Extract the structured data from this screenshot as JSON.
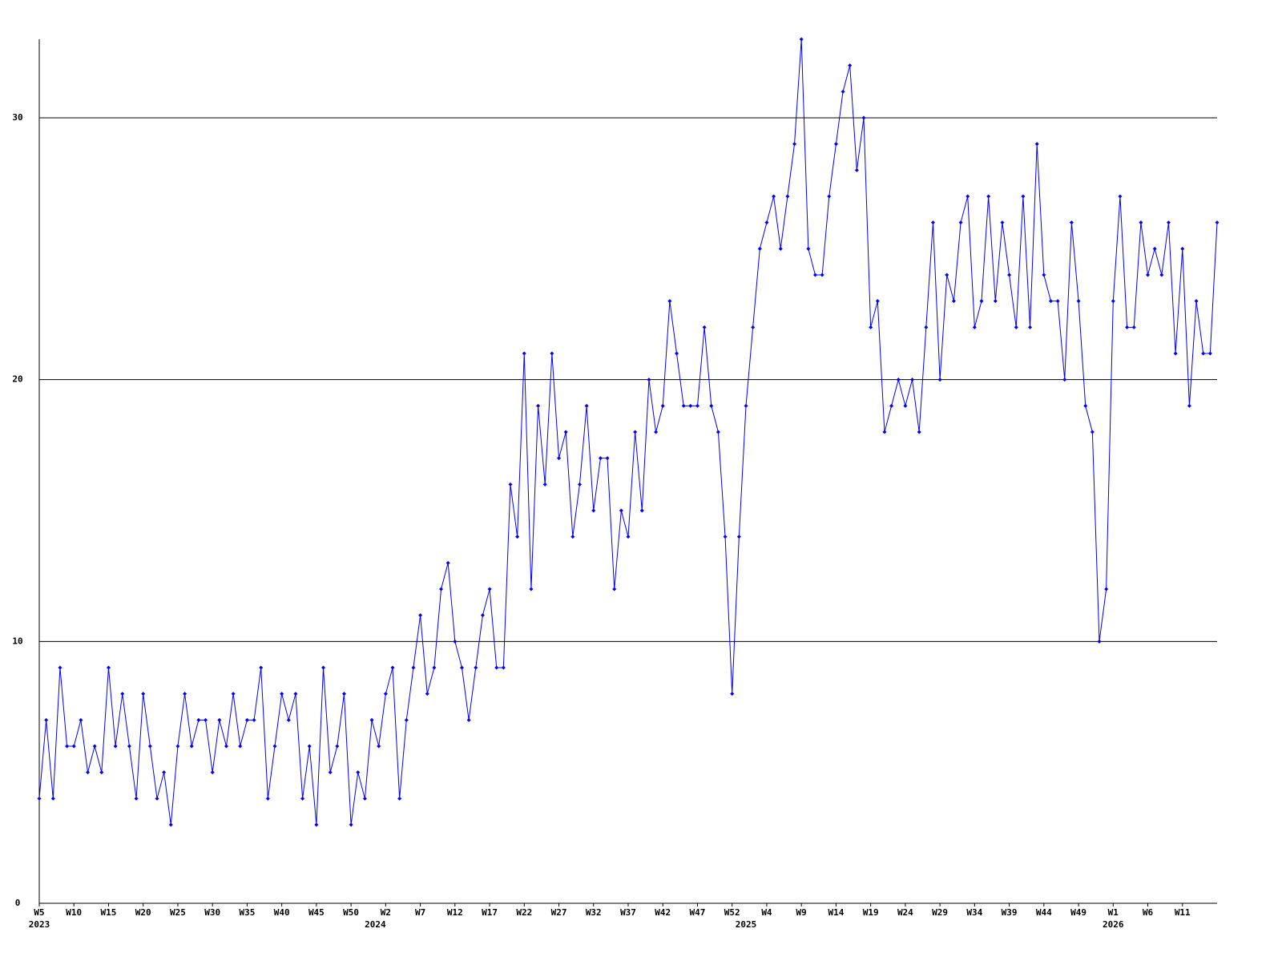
{
  "chart_data": {
    "type": "line",
    "x": [
      0,
      1,
      2,
      3,
      4,
      5,
      6,
      7,
      8,
      9,
      10,
      11,
      12,
      13,
      14,
      15,
      16,
      17,
      18,
      19,
      20,
      21,
      22,
      23,
      24,
      25,
      26,
      27,
      28,
      29,
      30,
      31,
      32,
      33,
      34,
      35,
      36,
      37,
      38,
      39,
      40,
      41,
      42,
      43,
      44,
      45,
      46,
      47,
      48,
      49,
      50,
      51,
      52,
      53,
      54,
      55,
      56,
      57,
      58,
      59,
      60,
      61,
      62,
      63,
      64,
      65,
      66,
      67,
      68,
      69,
      70,
      71,
      72,
      73,
      74,
      75,
      76,
      77,
      78,
      79,
      80,
      81,
      82,
      83,
      84,
      85,
      86,
      87,
      88,
      89,
      90,
      91,
      92,
      93,
      94,
      95,
      96,
      97,
      98,
      99,
      100,
      101,
      102,
      103,
      104,
      105,
      106,
      107,
      108,
      109,
      110,
      111,
      112,
      113,
      114,
      115,
      116,
      117,
      118,
      119,
      120,
      121,
      122,
      123,
      124,
      125,
      126,
      127,
      128,
      129,
      130,
      131,
      132,
      133,
      134,
      135,
      136,
      137,
      138,
      139,
      140,
      141,
      142,
      143,
      144,
      145,
      146,
      147,
      148,
      149,
      150,
      151,
      152,
      153,
      154,
      155,
      156,
      157,
      158,
      159,
      160,
      161,
      162,
      163,
      164,
      165,
      166,
      167,
      168,
      169,
      170
    ],
    "series": [
      {
        "color": "#0000ff",
        "values": [
          4,
          7,
          4,
          9,
          6,
          6,
          7,
          5,
          6,
          5,
          9,
          6,
          8,
          6,
          4,
          8,
          6,
          4,
          5,
          3,
          6,
          8,
          6,
          7,
          7,
          5,
          7,
          6,
          8,
          6,
          7,
          7,
          9,
          4,
          6,
          8,
          7,
          8,
          4,
          6,
          3,
          9,
          5,
          6,
          8,
          3,
          5,
          4,
          7,
          6,
          8,
          9,
          4,
          7,
          9,
          11,
          8,
          9,
          12,
          13,
          10,
          9,
          7,
          9,
          11,
          12,
          9,
          9,
          16,
          14,
          21,
          12,
          19,
          16,
          21,
          17,
          18,
          14,
          16,
          19,
          15,
          17,
          17,
          12,
          15,
          14,
          18,
          15,
          20,
          18,
          19,
          23,
          21,
          19,
          19,
          19,
          22,
          19,
          18,
          14,
          8,
          14,
          19,
          22,
          25,
          26,
          27,
          25,
          27,
          29,
          33,
          25,
          24,
          24,
          27,
          29,
          31,
          32,
          28,
          30,
          22,
          23,
          18,
          19,
          20,
          19,
          20,
          18,
          22,
          26,
          20,
          24,
          23,
          26,
          27,
          22,
          23,
          27,
          23,
          26,
          24,
          22,
          27,
          22,
          29,
          24,
          23,
          23,
          20,
          26,
          23,
          19,
          18,
          10,
          12,
          23,
          27,
          22,
          22,
          26,
          24,
          25,
          24,
          26,
          21,
          25,
          19,
          23,
          21,
          21,
          26
        ]
      }
    ],
    "xlim": [
      0,
      170
    ],
    "xticks": [
      {
        "value": 0,
        "label": "W5"
      },
      {
        "value": 5,
        "label": "W10"
      },
      {
        "value": 10,
        "label": "W15"
      },
      {
        "value": 15,
        "label": "W20"
      },
      {
        "value": 20,
        "label": "W25"
      },
      {
        "value": 25,
        "label": "W30"
      },
      {
        "value": 30,
        "label": "W35"
      },
      {
        "value": 35,
        "label": "W40"
      },
      {
        "value": 40,
        "label": "W45"
      },
      {
        "value": 45,
        "label": "W50"
      },
      {
        "value": 50,
        "label": "W2"
      },
      {
        "value": 55,
        "label": "W7"
      },
      {
        "value": 60,
        "label": "W12"
      },
      {
        "value": 65,
        "label": "W17"
      },
      {
        "value": 70,
        "label": "W22"
      },
      {
        "value": 75,
        "label": "W27"
      },
      {
        "value": 80,
        "label": "W32"
      },
      {
        "value": 85,
        "label": "W37"
      },
      {
        "value": 90,
        "label": "W42"
      },
      {
        "value": 95,
        "label": "W47"
      },
      {
        "value": 100,
        "label": "W52"
      },
      {
        "value": 105,
        "label": "W4"
      },
      {
        "value": 110,
        "label": "W9"
      },
      {
        "value": 115,
        "label": "W14"
      },
      {
        "value": 120,
        "label": "W19"
      },
      {
        "value": 125,
        "label": "W24"
      },
      {
        "value": 130,
        "label": "W29"
      },
      {
        "value": 135,
        "label": "W34"
      },
      {
        "value": 140,
        "label": "W39"
      },
      {
        "value": 145,
        "label": "W44"
      },
      {
        "value": 150,
        "label": "W49"
      },
      {
        "value": 155,
        "label": "W1"
      },
      {
        "value": 160,
        "label": "W6"
      },
      {
        "value": 165,
        "label": "W11"
      }
    ],
    "year_labels": [
      {
        "value": 0,
        "label": "2023"
      },
      {
        "value": 48.5,
        "label": "2024"
      },
      {
        "value": 102,
        "label": "2025"
      },
      {
        "value": 155,
        "label": "2026"
      }
    ],
    "ylim": [
      0,
      33
    ],
    "yticks": [
      0,
      10,
      20,
      30
    ],
    "grid": true
  }
}
